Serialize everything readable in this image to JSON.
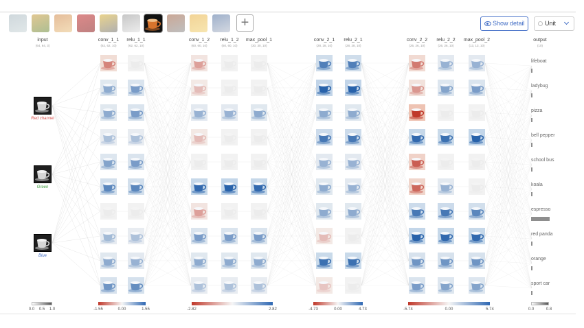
{
  "toolbar": {
    "thumbnails": [
      {
        "name": "lifeboat",
        "selected": false,
        "colors": [
          "#a8b8c0",
          "#c8d4d6"
        ]
      },
      {
        "name": "ladybug",
        "selected": false,
        "colors": [
          "#c89a3a",
          "#6a8a3a"
        ]
      },
      {
        "name": "pizza",
        "selected": false,
        "colors": [
          "#d08848",
          "#e8c080"
        ]
      },
      {
        "name": "bell pepper",
        "selected": false,
        "colors": [
          "#c02828",
          "#8a1a1a"
        ]
      },
      {
        "name": "school bus",
        "selected": false,
        "colors": [
          "#d8b030",
          "#707070"
        ]
      },
      {
        "name": "koala",
        "selected": false,
        "colors": [
          "#999999",
          "#dddddd"
        ]
      },
      {
        "name": "espresso",
        "selected": true,
        "colors": [
          "#1a1a1a",
          "#c87840"
        ]
      },
      {
        "name": "red panda",
        "selected": false,
        "colors": [
          "#a06040",
          "#8a8a8a"
        ]
      },
      {
        "name": "orange",
        "selected": false,
        "colors": [
          "#e8b040",
          "#f0d070"
        ]
      },
      {
        "name": "sport car",
        "selected": false,
        "colors": [
          "#5070a0",
          "#b0b8c8"
        ]
      }
    ],
    "show_detail_label": "Show detail",
    "unit_label": "Unit"
  },
  "columns": [
    {
      "name": "input",
      "dims": "(64, 64, 3)"
    },
    {
      "name": "conv_1_1",
      "dims": "(62, 62, 10)"
    },
    {
      "name": "relu_1_1",
      "dims": "(62, 62, 10)"
    },
    {
      "name": "conv_1_2",
      "dims": "(60, 60, 10)"
    },
    {
      "name": "relu_1_2",
      "dims": "(60, 60, 10)"
    },
    {
      "name": "max_pool_1",
      "dims": "(30, 30, 10)"
    },
    {
      "name": "conv_2_1",
      "dims": "(28, 28, 10)"
    },
    {
      "name": "relu_2_1",
      "dims": "(28, 28, 10)"
    },
    {
      "name": "conv_2_2",
      "dims": "(26, 26, 10)"
    },
    {
      "name": "relu_2_2",
      "dims": "(26, 26, 10)"
    },
    {
      "name": "max_pool_2",
      "dims": "(13, 13, 10)"
    },
    {
      "name": "output",
      "dims": "(10)"
    }
  ],
  "input_channels": [
    {
      "label": "Red channel",
      "color": "#d9534f"
    },
    {
      "label": "Green",
      "color": "#3c9a3c"
    },
    {
      "label": "Blue",
      "color": "#3f6bc4"
    }
  ],
  "activations": [
    [
      [
        "r",
        0.45
      ],
      [
        "b",
        0.35
      ],
      [
        "b",
        0.35
      ],
      [
        "b",
        0.2
      ],
      [
        "b",
        0.4
      ],
      [
        "b",
        0.6
      ],
      [
        "w",
        0
      ],
      [
        "b",
        0.25
      ],
      [
        "b",
        0.35
      ],
      [
        "b",
        0.5
      ]
    ],
    [
      [
        "w",
        0
      ],
      [
        "b",
        0.45
      ],
      [
        "b",
        0.45
      ],
      [
        "b",
        0.2
      ],
      [
        "b",
        0.45
      ],
      [
        "b",
        0.6
      ],
      [
        "w",
        0
      ],
      [
        "b",
        0.2
      ],
      [
        "b",
        0.3
      ],
      [
        "b",
        0.55
      ]
    ],
    [
      [
        "r",
        0.3
      ],
      [
        "r",
        0.15
      ],
      [
        "b",
        0.3
      ],
      [
        "r",
        0.15
      ],
      [
        "w",
        0
      ],
      [
        "b",
        0.8
      ],
      [
        "r",
        0.3
      ],
      [
        "b",
        0.45
      ],
      [
        "b",
        0.35
      ],
      [
        "b",
        0.2
      ]
    ],
    [
      [
        "w",
        0
      ],
      [
        "w",
        0
      ],
      [
        "b",
        0.3
      ],
      [
        "w",
        0
      ],
      [
        "w",
        0
      ],
      [
        "b",
        0.85
      ],
      [
        "w",
        0
      ],
      [
        "b",
        0.45
      ],
      [
        "b",
        0.35
      ],
      [
        "b",
        0.2
      ]
    ],
    [
      [
        "w",
        0
      ],
      [
        "w",
        0
      ],
      [
        "b",
        0.35
      ],
      [
        "w",
        0
      ],
      [
        "w",
        0
      ],
      [
        "b",
        0.8
      ],
      [
        "w",
        0
      ],
      [
        "b",
        0.45
      ],
      [
        "b",
        0.35
      ],
      [
        "b",
        0.2
      ]
    ],
    [
      [
        "b",
        0.65
      ],
      [
        "b",
        0.9
      ],
      [
        "b",
        0.35
      ],
      [
        "b",
        0.7
      ],
      [
        "b",
        0.3
      ],
      [
        "b",
        0.35
      ],
      [
        "b",
        0.35
      ],
      [
        "r",
        0.15
      ],
      [
        "b",
        0.75
      ],
      [
        "r",
        0.1
      ]
    ],
    [
      [
        "b",
        0.65
      ],
      [
        "b",
        0.9
      ],
      [
        "b",
        0.35
      ],
      [
        "b",
        0.7
      ],
      [
        "b",
        0.3
      ],
      [
        "b",
        0.3
      ],
      [
        "b",
        0.35
      ],
      [
        "w",
        0
      ],
      [
        "b",
        0.75
      ],
      [
        "w",
        0
      ]
    ],
    [
      [
        "r",
        0.5
      ],
      [
        "r",
        0.35
      ],
      [
        "r",
        0.95
      ],
      [
        "b",
        0.8
      ],
      [
        "r",
        0.65
      ],
      [
        "r",
        0.6
      ],
      [
        "b",
        0.7
      ],
      [
        "b",
        0.85
      ],
      [
        "b",
        0.5
      ],
      [
        "b",
        0.45
      ]
    ],
    [
      [
        "b",
        0.3
      ],
      [
        "b",
        0.4
      ],
      [
        "w",
        0
      ],
      [
        "b",
        0.75
      ],
      [
        "w",
        0
      ],
      [
        "b",
        0.3
      ],
      [
        "b",
        0.7
      ],
      [
        "b",
        0.8
      ],
      [
        "b",
        0.5
      ],
      [
        "b",
        0.4
      ]
    ],
    [
      [
        "b",
        0.3
      ],
      [
        "b",
        0.45
      ],
      [
        "w",
        0
      ],
      [
        "b",
        0.85
      ],
      [
        "w",
        0
      ],
      [
        "w",
        0
      ],
      [
        "b",
        0.6
      ],
      [
        "b",
        0.8
      ],
      [
        "b",
        0.5
      ],
      [
        "b",
        0.4
      ]
    ]
  ],
  "outputs": [
    {
      "label": "lifeboat",
      "value": 0.0
    },
    {
      "label": "ladybug",
      "value": 0.0
    },
    {
      "label": "pizza",
      "value": 0.0
    },
    {
      "label": "bell pepper",
      "value": 0.02
    },
    {
      "label": "school bus",
      "value": 0.0
    },
    {
      "label": "koala",
      "value": 0.0
    },
    {
      "label": "espresso",
      "value": 0.94
    },
    {
      "label": "red panda",
      "value": 0.03
    },
    {
      "label": "orange",
      "value": 0.0
    },
    {
      "label": "sport car",
      "value": 0.0
    }
  ],
  "legends": [
    {
      "type": "gray",
      "labels": [
        "0.0",
        "0.5",
        "1.0"
      ]
    },
    {
      "type": "diverging",
      "labels": [
        "-1.55",
        "0.00",
        "1.55"
      ]
    },
    {
      "type": "diverging",
      "labels": [
        "-2.82",
        "",
        "2.82"
      ]
    },
    {
      "type": "diverging",
      "labels": [
        "-4.73",
        "0.00",
        "4.73"
      ]
    },
    {
      "type": "diverging",
      "labels": [
        "-5.74",
        "0.00",
        "5.74"
      ]
    },
    {
      "type": "gray",
      "labels": [
        "0.0",
        "0.8"
      ]
    }
  ],
  "colors": {
    "accent": "#3f6bc4",
    "positive": "#2f68b3",
    "negative": "#c0392b",
    "connection": "#d8d8d8"
  }
}
